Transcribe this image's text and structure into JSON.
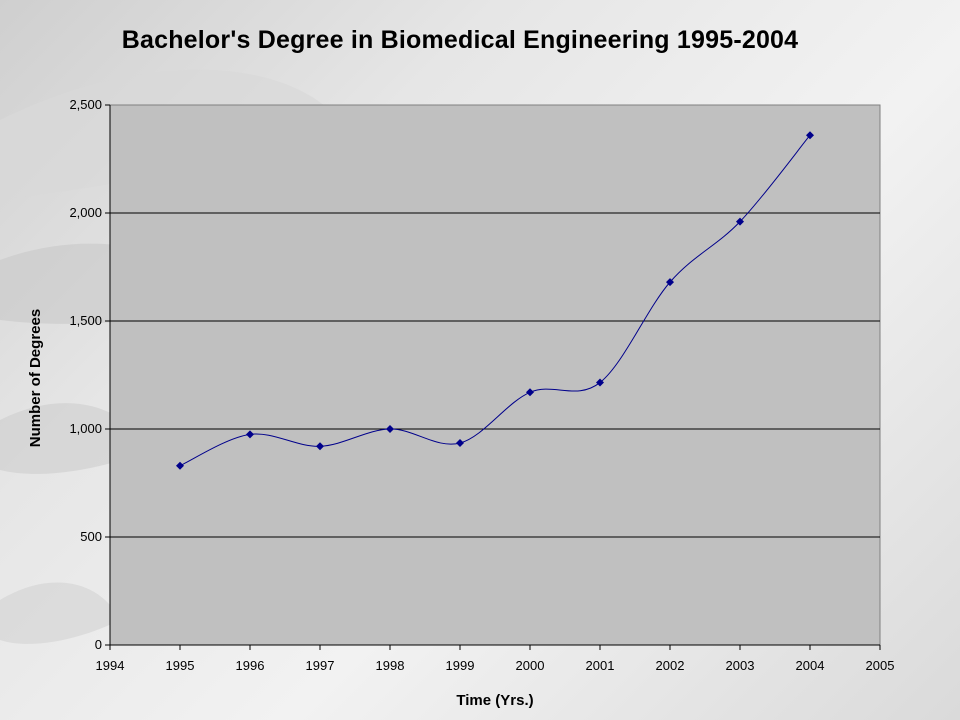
{
  "chart_data": {
    "type": "line",
    "title": "Bachelor's Degree in Biomedical Engineering 1995-2004",
    "xlabel": "Time (Yrs.)",
    "ylabel": "Number of Degrees",
    "xlim": [
      1994,
      2005
    ],
    "ylim": [
      0,
      2500
    ],
    "x_ticks": [
      "1994",
      "1995",
      "1996",
      "1997",
      "1998",
      "1999",
      "2000",
      "2001",
      "2002",
      "2003",
      "2004",
      "2005"
    ],
    "y_ticks": [
      "0",
      "500",
      "1,000",
      "1,500",
      "2,000",
      "2,500"
    ],
    "grid": "horizontal",
    "smooth": true,
    "series": [
      {
        "x": [
          1995,
          1996,
          1997,
          1998,
          1999,
          2000,
          2001,
          2002,
          2003,
          2004
        ],
        "values": [
          830,
          975,
          920,
          1000,
          935,
          1170,
          1215,
          1680,
          1960,
          2360
        ],
        "color": "#00008B"
      }
    ],
    "plot_background": "#c0c0c0"
  }
}
